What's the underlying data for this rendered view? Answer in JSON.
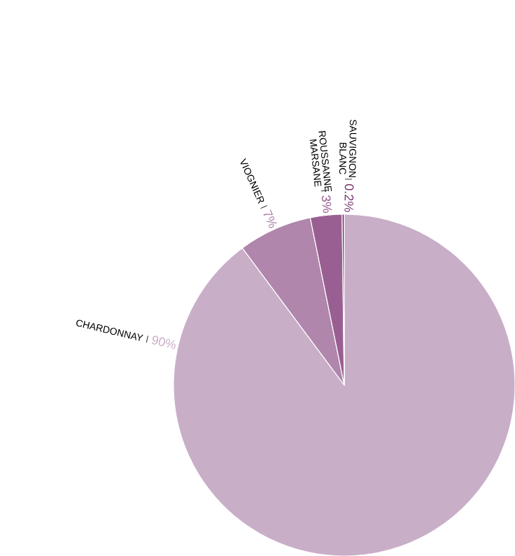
{
  "chart_data": {
    "type": "pie",
    "categories": [
      "CHARDONNAY",
      "VIOGNIER",
      "ROUSSANNE MARSANE",
      "SAUVIGNON BLANC"
    ],
    "values": [
      90,
      7,
      3,
      0.2
    ],
    "value_labels": [
      "90%",
      "7%",
      "3%",
      "0.2%"
    ],
    "colors": [
      "#c9aec8",
      "#b086ac",
      "#9a5f92",
      "#7a3670"
    ]
  }
}
